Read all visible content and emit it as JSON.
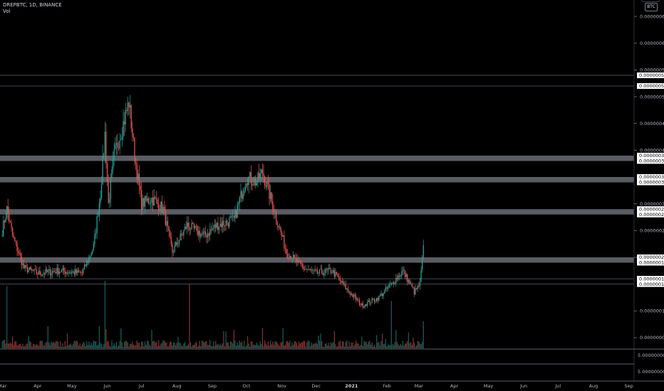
{
  "header": {
    "symbol": "DREPBTC, 1D, BINANCE",
    "indicator": "Vol"
  },
  "currency_badge": "BTC",
  "colors": {
    "up": "#26a69a",
    "down": "#ef5350",
    "zone": "#787b86",
    "axis_text": "#b2b5be",
    "background": "#000000"
  },
  "price_axis": {
    "ticks": [
      {
        "label": "0.00000065",
        "value": 6.5e-07
      },
      {
        "label": "0.00000060",
        "value": 6e-07
      },
      {
        "label": "0.00000055",
        "value": 5.5e-07
      },
      {
        "label": "0.00000050",
        "value": 5e-07
      },
      {
        "label": "0.00000045",
        "value": 4.5e-07
      },
      {
        "label": "0.00000040",
        "value": 4e-07
      },
      {
        "label": "0.00000030",
        "value": 3e-07
      },
      {
        "label": "0.00000025",
        "value": 2.5e-07
      },
      {
        "label": "0.00000020",
        "value": 2e-07
      },
      {
        "label": "0.00000010",
        "value": 1e-07
      },
      {
        "label": "0.00000005",
        "value": 5e-08
      }
    ],
    "level_labels": [
      {
        "label": "0.00000054",
        "value": 5.4e-07
      },
      {
        "label": "0.00000052",
        "value": 5.2e-07
      },
      {
        "label": "0.00000039",
        "value": 3.9e-07
      },
      {
        "label": "0.00000038",
        "value": 3.8e-07
      },
      {
        "label": "0.00000035",
        "value": 3.5e-07
      },
      {
        "label": "0.00000034",
        "value": 3.4e-07
      },
      {
        "label": "0.00000029",
        "value": 2.9e-07
      },
      {
        "label": "0.00000028",
        "value": 2.8e-07
      },
      {
        "label": "0.00000020",
        "value": 2e-07
      },
      {
        "label": "0.00000019",
        "value": 1.9e-07
      },
      {
        "label": "0.00000016",
        "value": 1.6e-07
      },
      {
        "label": "0.00000015",
        "value": 1.5e-07
      }
    ]
  },
  "volume_axis": {
    "ticks": [
      "5.00000000",
      "5.00000000"
    ]
  },
  "zones": [
    {
      "low": 3.8e-07,
      "high": 3.9e-07
    },
    {
      "low": 3.4e-07,
      "high": 3.5e-07
    },
    {
      "low": 2.8e-07,
      "high": 2.9e-07
    },
    {
      "low": 1.9e-07,
      "high": 2e-07
    }
  ],
  "h_lines": [
    5.4e-07,
    5.2e-07,
    1.6e-07,
    1.5e-07
  ],
  "x_axis": {
    "labels": [
      "Mar",
      "Apr",
      "May",
      "Jun",
      "Jul",
      "Aug",
      "Sep",
      "Oct",
      "Nov",
      "Dec",
      "2021",
      "Feb",
      "Mar",
      "Apr",
      "May",
      "Jun",
      "Jul",
      "Aug",
      "Sep"
    ]
  },
  "chart_data": {
    "type": "candlestick",
    "interval": "1D",
    "anchors": [
      {
        "date": "2020-03-01",
        "price": 2.5e-07
      },
      {
        "date": "2020-03-05",
        "price": 2.9e-07
      },
      {
        "date": "2020-03-10",
        "price": 2.4e-07
      },
      {
        "date": "2020-03-20",
        "price": 1.8e-07
      },
      {
        "date": "2020-04-01",
        "price": 1.7e-07
      },
      {
        "date": "2020-04-20",
        "price": 1.75e-07
      },
      {
        "date": "2020-05-10",
        "price": 1.7e-07
      },
      {
        "date": "2020-05-20",
        "price": 2.2e-07
      },
      {
        "date": "2020-05-26",
        "price": 3.2e-07
      },
      {
        "date": "2020-05-30",
        "price": 4.3e-07
      },
      {
        "date": "2020-06-02",
        "price": 3e-07
      },
      {
        "date": "2020-06-07",
        "price": 3.9e-07
      },
      {
        "date": "2020-06-15",
        "price": 4.5e-07
      },
      {
        "date": "2020-06-20",
        "price": 4.9e-07
      },
      {
        "date": "2020-06-25",
        "price": 3.9e-07
      },
      {
        "date": "2020-07-01",
        "price": 3e-07
      },
      {
        "date": "2020-07-10",
        "price": 3.1e-07
      },
      {
        "date": "2020-07-20",
        "price": 2.9e-07
      },
      {
        "date": "2020-07-28",
        "price": 2.1e-07
      },
      {
        "date": "2020-08-10",
        "price": 2.6e-07
      },
      {
        "date": "2020-08-25",
        "price": 2.4e-07
      },
      {
        "date": "2020-09-05",
        "price": 2.6e-07
      },
      {
        "date": "2020-09-20",
        "price": 2.7e-07
      },
      {
        "date": "2020-10-01",
        "price": 3.5e-07
      },
      {
        "date": "2020-10-10",
        "price": 3.4e-07
      },
      {
        "date": "2020-10-15",
        "price": 3.6e-07
      },
      {
        "date": "2020-10-25",
        "price": 2.9e-07
      },
      {
        "date": "2020-11-05",
        "price": 2.1e-07
      },
      {
        "date": "2020-11-20",
        "price": 1.8e-07
      },
      {
        "date": "2020-12-01",
        "price": 1.7e-07
      },
      {
        "date": "2020-12-15",
        "price": 1.75e-07
      },
      {
        "date": "2020-12-28",
        "price": 1.4e-07
      },
      {
        "date": "2021-01-10",
        "price": 1.1e-07
      },
      {
        "date": "2021-01-25",
        "price": 1.25e-07
      },
      {
        "date": "2021-02-05",
        "price": 1.5e-07
      },
      {
        "date": "2021-02-15",
        "price": 1.75e-07
      },
      {
        "date": "2021-02-25",
        "price": 1.35e-07
      },
      {
        "date": "2021-03-02",
        "price": 1.5e-07
      },
      {
        "date": "2021-03-05",
        "price": 2.15e-07
      }
    ],
    "volume_spikes": [
      {
        "date": "2020-03-05",
        "level": 0.92
      },
      {
        "date": "2020-05-30",
        "level": 1.0
      },
      {
        "date": "2020-08-12",
        "level": 0.95
      },
      {
        "date": "2020-10-15",
        "level": 0.3
      },
      {
        "date": "2020-11-02",
        "level": 0.3
      },
      {
        "date": "2021-02-05",
        "level": 0.7
      },
      {
        "date": "2021-03-05",
        "level": 0.4
      }
    ],
    "ylim": [
      3e-08,
      6.7e-07
    ],
    "x_range": [
      "2020-02-28",
      "2021-09-05"
    ],
    "grid": false
  }
}
